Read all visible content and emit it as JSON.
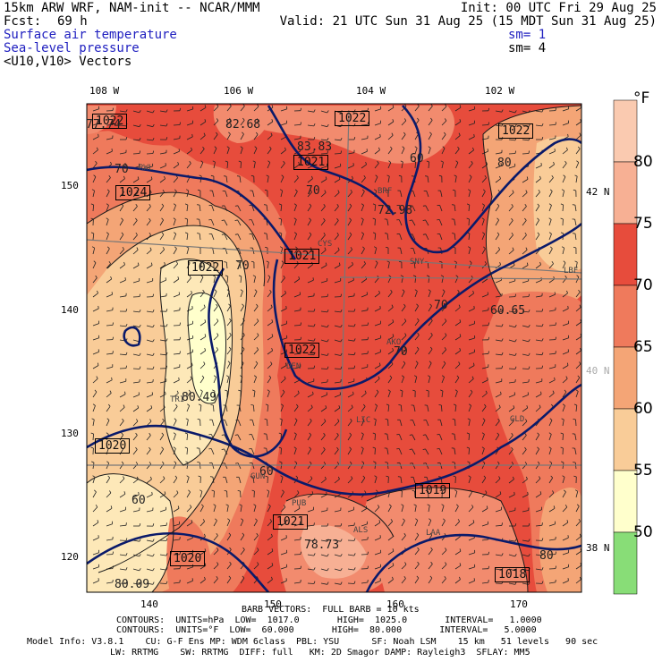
{
  "header": {
    "model_line": "15km ARW WRF, NAM-init -- NCAR/MMM",
    "init_line": "Init: 00 UTC Fri 29 Aug 25",
    "fcst_label": "Fcst:",
    "fcst_value": "69 h",
    "valid_line": "Valid: 21 UTC Sun 31 Aug 25 (15 MDT Sun 31 Aug 25)",
    "fields": [
      {
        "name": "Surface air temperature",
        "sm": "sm= 1"
      },
      {
        "name": "Sea-level pressure",
        "sm": "sm= 4"
      },
      {
        "name": "<U10,V10> Vectors",
        "sm": ""
      }
    ]
  },
  "map": {
    "top_lon_labels": [
      "108 W",
      "106 W",
      "104 W",
      "102 W"
    ],
    "right_lat_labels": [
      "42 N",
      "40 N",
      "38 N"
    ],
    "left_grid_labels": [
      "150",
      "140",
      "130",
      "120"
    ],
    "bottom_grid_labels": [
      "140",
      "150",
      "160",
      "170"
    ],
    "pressure_labels": [
      "1022",
      "1022",
      "1021",
      "1022",
      "1024",
      "1022",
      "1021",
      "1022",
      "1020",
      "1019",
      "1021",
      "1020",
      "1018"
    ],
    "temp_labels": [
      "77.74",
      "82.68",
      "83.83",
      "72.98",
      "60.65",
      "80.49",
      "78.73",
      "80.09",
      "70",
      "70",
      "70",
      "60",
      "80",
      "70",
      "60",
      "60",
      "80",
      "70"
    ],
    "station_labels": [
      "RWL",
      "BRF",
      "SNY",
      "AKO",
      "DEN",
      "LIC",
      "GLD",
      "GUN",
      "PUB",
      "LAA",
      "ALS",
      "LBF",
      "CYS",
      "TRI"
    ],
    "colors": {
      "lt50": "#ffffcc",
      "50_55": "#fde8b8",
      "55_60": "#f9cc98",
      "60_65": "#f4a576",
      "65_70": "#ef7a5c",
      "70_75": "#e74c3c",
      "75_80": "#f28b6e",
      "80_85": "#f7b094",
      "gt85": "#facab0",
      "isobar": "#0a1a6a",
      "isotherm": "#1a1a1a"
    }
  },
  "colorbar": {
    "unit": "°F",
    "labels": [
      "80",
      "75",
      "70",
      "65",
      "60",
      "55",
      "50"
    ]
  },
  "footer": {
    "barb_line": "BARB VECTORS:  FULL BARB = 10 kts",
    "contours1": "CONTOURS:  UNITS=hPa  LOW=  1017.0       HIGH=  1025.0       INTERVAL=   1.0000",
    "contours2": "CONTOURS:  UNITS=°F  LOW=  60.000       HIGH=  80.000       INTERVAL=   5.0000",
    "model_info": "Model Info: V3.8.1    CU: G-F Ens MP: WDM 6class  PBL: YSU      SF: Noah LSM    15 km   51 levels   90 sec",
    "model_info2": "LW: RRTMG    SW: RRTMG  DIFF: full   KM: 2D Smagor DAMP: Rayleigh3  SFLAY: MM5"
  }
}
